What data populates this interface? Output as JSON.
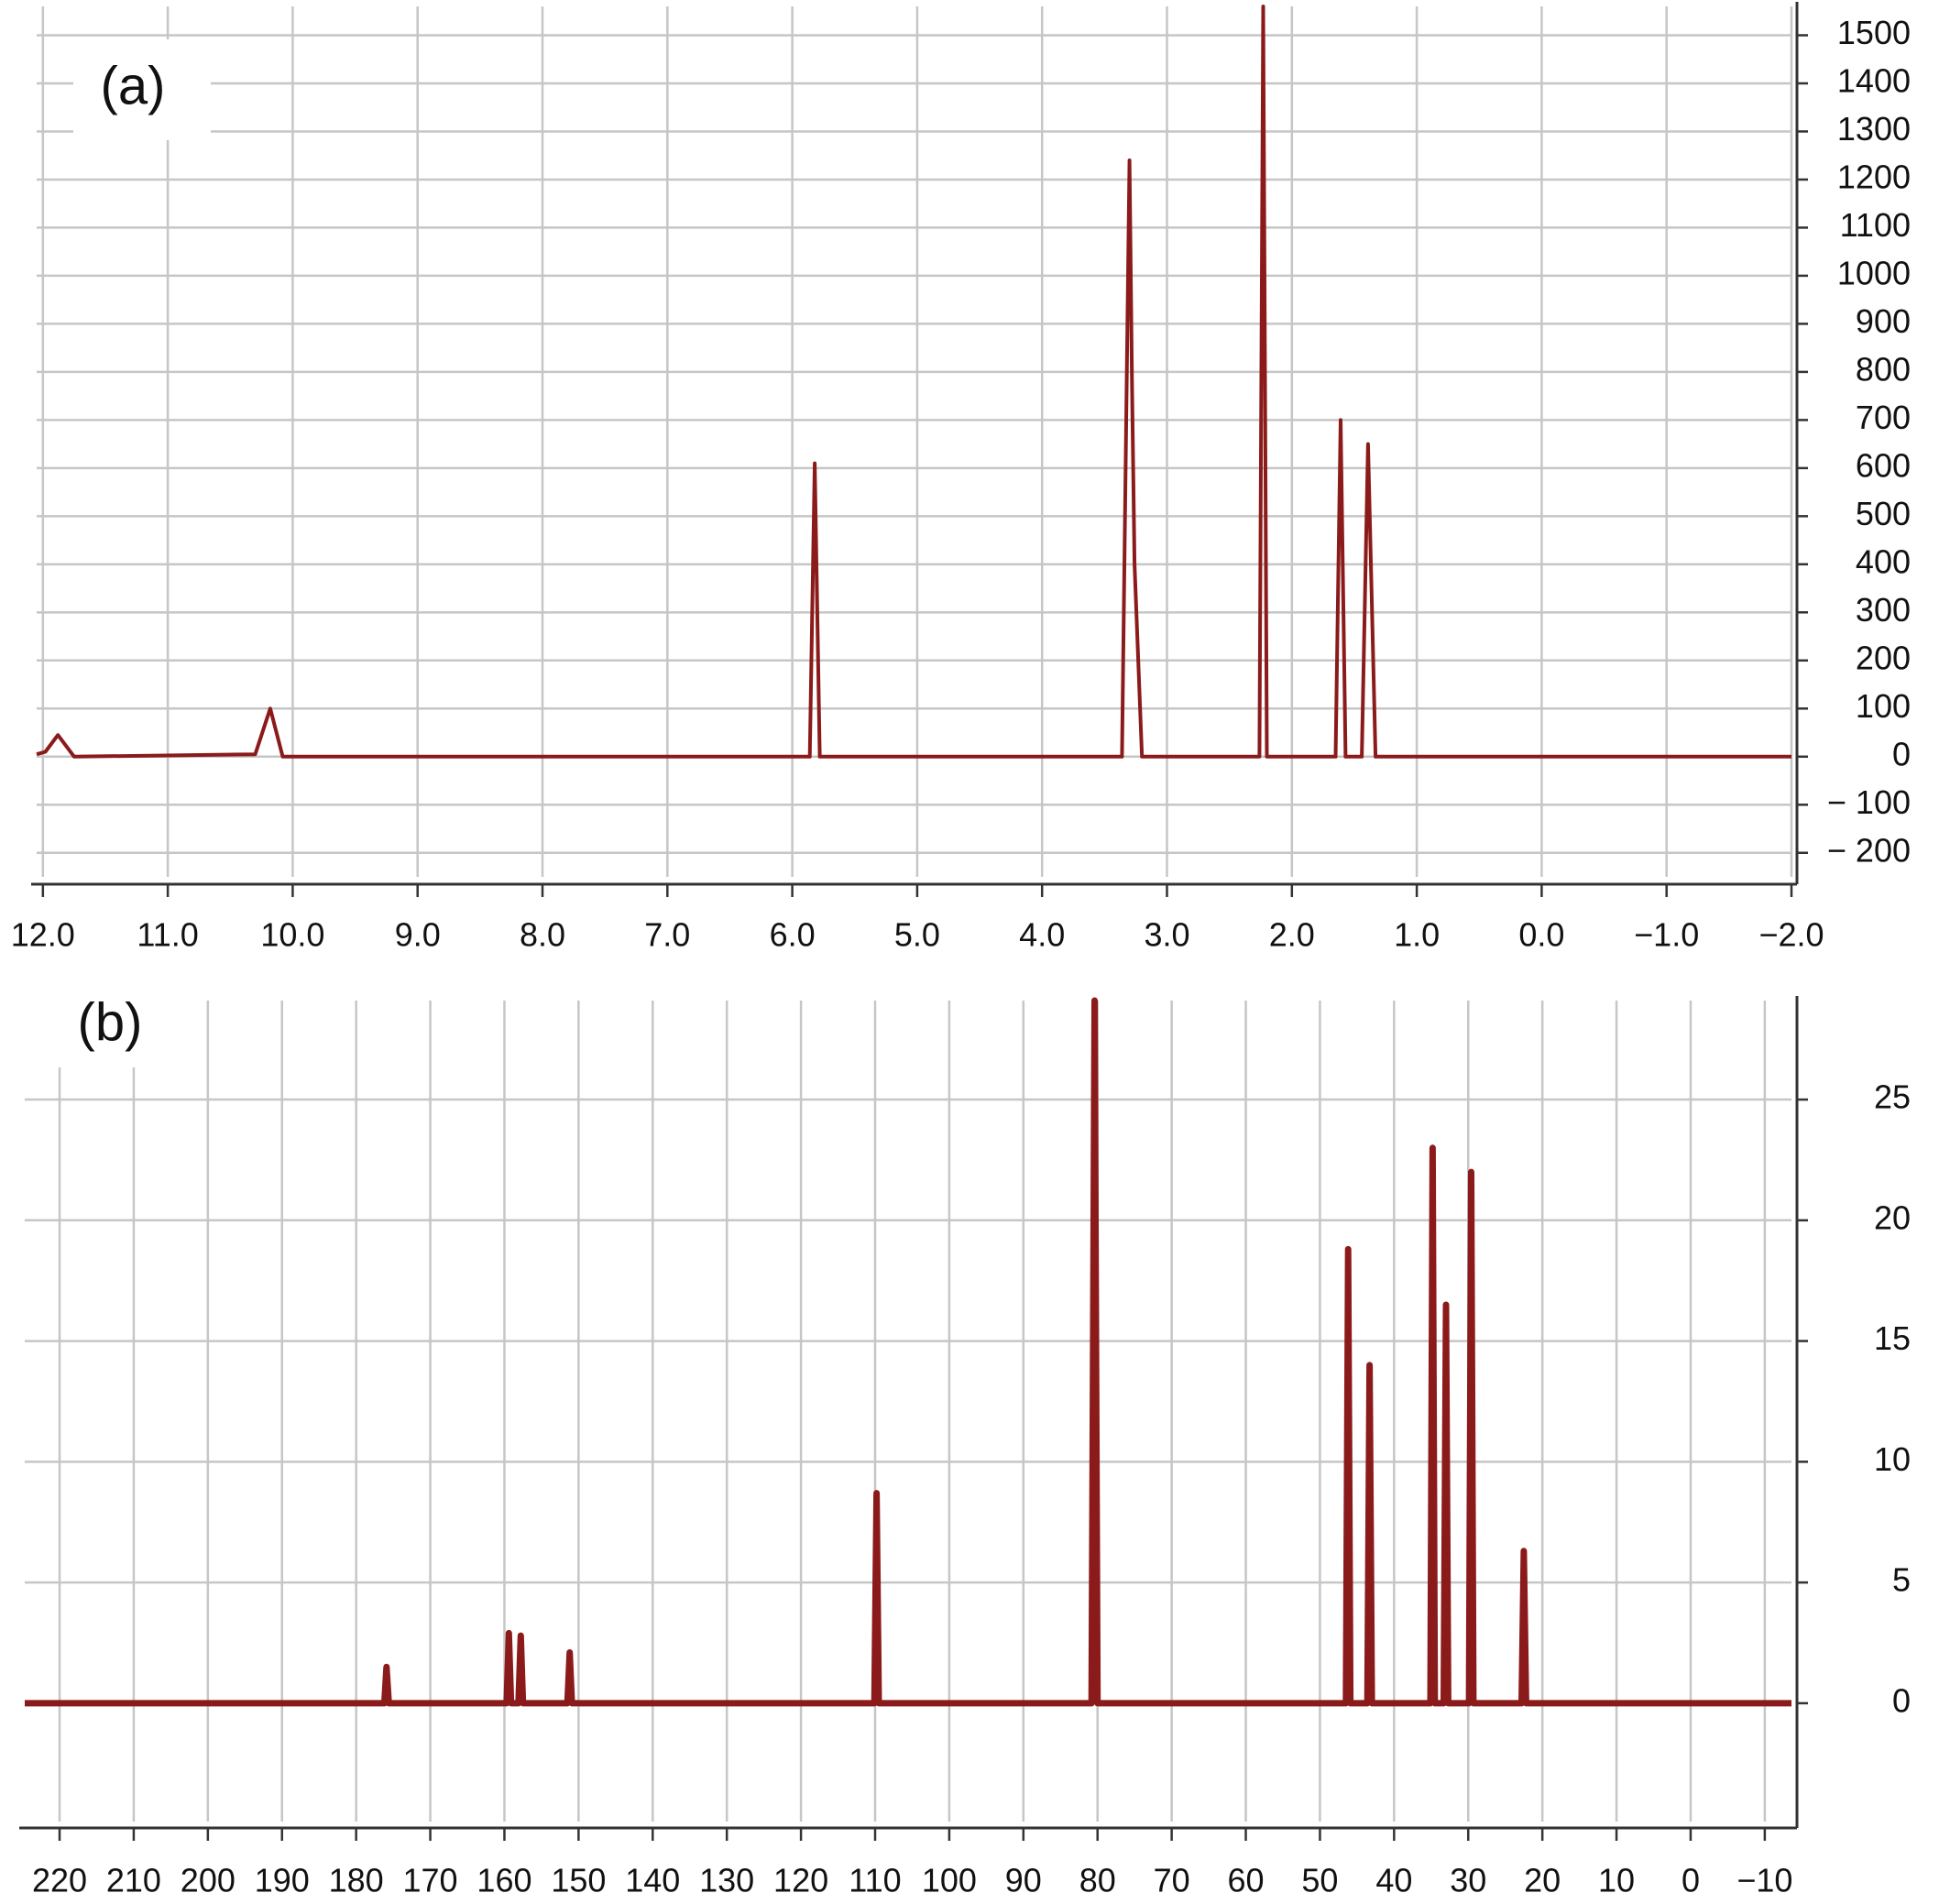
{
  "chart_data": [
    {
      "type": "line",
      "annotation": "(a)",
      "color": "#8b1a1a",
      "grid": true,
      "x": [
        12.05,
        11.98,
        11.88,
        11.75,
        10.3,
        10.18,
        10.08,
        5.86,
        5.82,
        5.78,
        3.36,
        3.3,
        3.28,
        3.26,
        3.2,
        2.26,
        2.23,
        2.2,
        1.65,
        1.61,
        1.57,
        1.44,
        1.39,
        1.33,
        -2.0
      ],
      "values": [
        5,
        10,
        45,
        0,
        5,
        100,
        0,
        0,
        610,
        0,
        0,
        1240,
        780,
        400,
        0,
        0,
        1560,
        0,
        0,
        700,
        0,
        0,
        650,
        0,
        0
      ],
      "xlim": [
        12.05,
        -2.0
      ],
      "xticks": [
        {
          "value": 12,
          "label": "12.0"
        },
        {
          "value": 11,
          "label": "11.0"
        },
        {
          "value": 10,
          "label": "10.0"
        },
        {
          "value": 9,
          "label": "9.0"
        },
        {
          "value": 8,
          "label": "8.0"
        },
        {
          "value": 7,
          "label": "7.0"
        },
        {
          "value": 6,
          "label": "6.0"
        },
        {
          "value": 5,
          "label": "5.0"
        },
        {
          "value": 4,
          "label": "4.0"
        },
        {
          "value": 3,
          "label": "3.0"
        },
        {
          "value": 2,
          "label": "2.0"
        },
        {
          "value": 1,
          "label": "1.0"
        },
        {
          "value": 0,
          "label": "0.0"
        },
        {
          "value": -1,
          "label": "−1.0"
        },
        {
          "value": -2,
          "label": "−2.0"
        }
      ],
      "ylim": [
        -250,
        1560
      ],
      "yticks": [
        {
          "value": -200,
          "label": "− 200"
        },
        {
          "value": -100,
          "label": "− 100"
        },
        0,
        100,
        200,
        300,
        400,
        500,
        600,
        700,
        800,
        900,
        1000,
        1100,
        1200,
        1300,
        1400,
        1500
      ]
    },
    {
      "type": "line",
      "annotation": "(b)",
      "color": "#8b1a1a",
      "grid": true,
      "x": [
        224.7,
        176.2,
        175.9,
        175.6,
        159.7,
        159.4,
        159.1,
        158.1,
        157.8,
        157.5,
        151.5,
        151.2,
        150.9,
        110.1,
        109.8,
        109.5,
        80.8,
        80.4,
        80.0,
        46.5,
        46.2,
        45.9,
        43.6,
        43.3,
        43.0,
        35.1,
        34.8,
        34.5,
        33.3,
        33.0,
        32.7,
        29.9,
        29.6,
        29.3,
        22.8,
        22.5,
        22.2,
        -13.6
      ],
      "values": [
        0,
        0,
        1.5,
        0,
        0,
        2.9,
        0,
        0,
        2.8,
        0,
        0,
        2.1,
        0,
        0,
        8.7,
        0,
        0,
        29.1,
        0,
        0,
        18.8,
        0,
        0,
        14,
        0,
        0,
        23,
        0,
        0,
        16.5,
        0,
        0,
        22,
        0,
        0,
        6.3,
        0,
        0
      ],
      "xlim": [
        224.7,
        -13.6
      ],
      "xticks": [
        220,
        210,
        200,
        190,
        180,
        170,
        160,
        150,
        140,
        130,
        120,
        110,
        100,
        90,
        80,
        70,
        60,
        50,
        40,
        30,
        20,
        10,
        0,
        {
          "value": -10,
          "label": "−10"
        }
      ],
      "ylim": [
        -4.9,
        29.1
      ],
      "yticks": [
        0,
        5,
        10,
        15,
        20,
        25
      ]
    }
  ]
}
